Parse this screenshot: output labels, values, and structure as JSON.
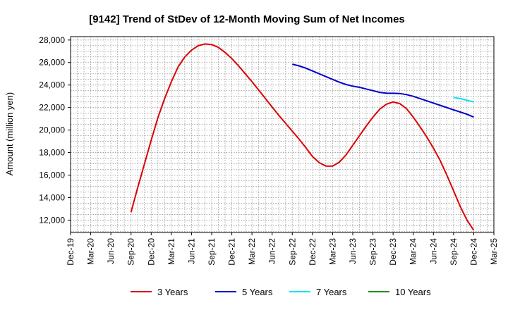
{
  "chart_data": {
    "type": "line",
    "title": "[9142]  Trend of StDev of 12-Month Moving Sum of Net Incomes",
    "xlabel": "",
    "ylabel": "Amount (million yen)",
    "x_tick_labels": [
      "Dec-19",
      "Mar-20",
      "Jun-20",
      "Sep-20",
      "Dec-20",
      "Mar-21",
      "Jun-21",
      "Sep-21",
      "Dec-21",
      "Mar-22",
      "Jun-22",
      "Sep-22",
      "Dec-22",
      "Mar-23",
      "Jun-23",
      "Sep-23",
      "Dec-23",
      "Mar-24",
      "Jun-24",
      "Sep-24",
      "Dec-24",
      "Mar-25"
    ],
    "y_ticks": [
      12000,
      14000,
      16000,
      18000,
      20000,
      22000,
      24000,
      26000,
      28000
    ],
    "y_tick_labels": [
      "12,000",
      "14,000",
      "16,000",
      "18,000",
      "20,000",
      "22,000",
      "24,000",
      "26,000",
      "28,000"
    ],
    "ylim": [
      10900,
      28300
    ],
    "grid": true,
    "legend_position": "bottom",
    "series": [
      {
        "name": "3 Years",
        "color": "#dd0000",
        "x": [
          "Sep-20",
          "Oct-20",
          "Nov-20",
          "Dec-20",
          "Jan-21",
          "Feb-21",
          "Mar-21",
          "Apr-21",
          "May-21",
          "Jun-21",
          "Jul-21",
          "Aug-21",
          "Sep-21",
          "Oct-21",
          "Nov-21",
          "Dec-21",
          "Jan-22",
          "Feb-22",
          "Mar-22",
          "Apr-22",
          "May-22",
          "Jun-22",
          "Jul-22",
          "Aug-22",
          "Sep-22",
          "Oct-22",
          "Nov-22",
          "Dec-22",
          "Jan-23",
          "Feb-23",
          "Mar-23",
          "Apr-23",
          "May-23",
          "Jun-23",
          "Jul-23",
          "Aug-23",
          "Sep-23",
          "Oct-23",
          "Nov-23",
          "Dec-23",
          "Jan-24",
          "Feb-24",
          "Mar-24",
          "Apr-24",
          "May-24",
          "Jun-24",
          "Jul-24",
          "Aug-24",
          "Sep-24",
          "Oct-24",
          "Nov-24",
          "Dec-24"
        ],
        "values": [
          12700,
          14900,
          17000,
          19100,
          21100,
          22800,
          24300,
          25600,
          26500,
          27100,
          27500,
          27650,
          27600,
          27350,
          26900,
          26350,
          25700,
          25000,
          24300,
          23550,
          22800,
          22050,
          21300,
          20600,
          19900,
          19200,
          18450,
          17650,
          17100,
          16800,
          16800,
          17150,
          17800,
          18650,
          19500,
          20350,
          21150,
          21850,
          22300,
          22500,
          22350,
          21900,
          21150,
          20300,
          19400,
          18400,
          17300,
          16000,
          14600,
          13200,
          12000,
          11100
        ]
      },
      {
        "name": "5 Years",
        "color": "#0000cc",
        "x": [
          "Sep-22",
          "Oct-22",
          "Nov-22",
          "Dec-22",
          "Jan-23",
          "Feb-23",
          "Mar-23",
          "Apr-23",
          "May-23",
          "Jun-23",
          "Jul-23",
          "Aug-23",
          "Sep-23",
          "Oct-23",
          "Nov-23",
          "Dec-23",
          "Jan-24",
          "Feb-24",
          "Mar-24",
          "Apr-24",
          "May-24",
          "Jun-24",
          "Jul-24",
          "Aug-24",
          "Sep-24",
          "Oct-24",
          "Nov-24",
          "Dec-24"
        ],
        "values": [
          25850,
          25700,
          25500,
          25250,
          25000,
          24750,
          24500,
          24250,
          24050,
          23900,
          23800,
          23650,
          23500,
          23350,
          23280,
          23270,
          23250,
          23150,
          23000,
          22800,
          22600,
          22400,
          22200,
          22000,
          21800,
          21600,
          21400,
          21150
        ]
      },
      {
        "name": "7 Years",
        "color": "#00e5ee",
        "x": [
          "Sep-24",
          "Oct-24",
          "Nov-24",
          "Dec-24"
        ],
        "values": [
          22900,
          22800,
          22650,
          22500
        ]
      },
      {
        "name": "10 Years",
        "color": "#228b22",
        "x": [],
        "values": []
      }
    ]
  }
}
